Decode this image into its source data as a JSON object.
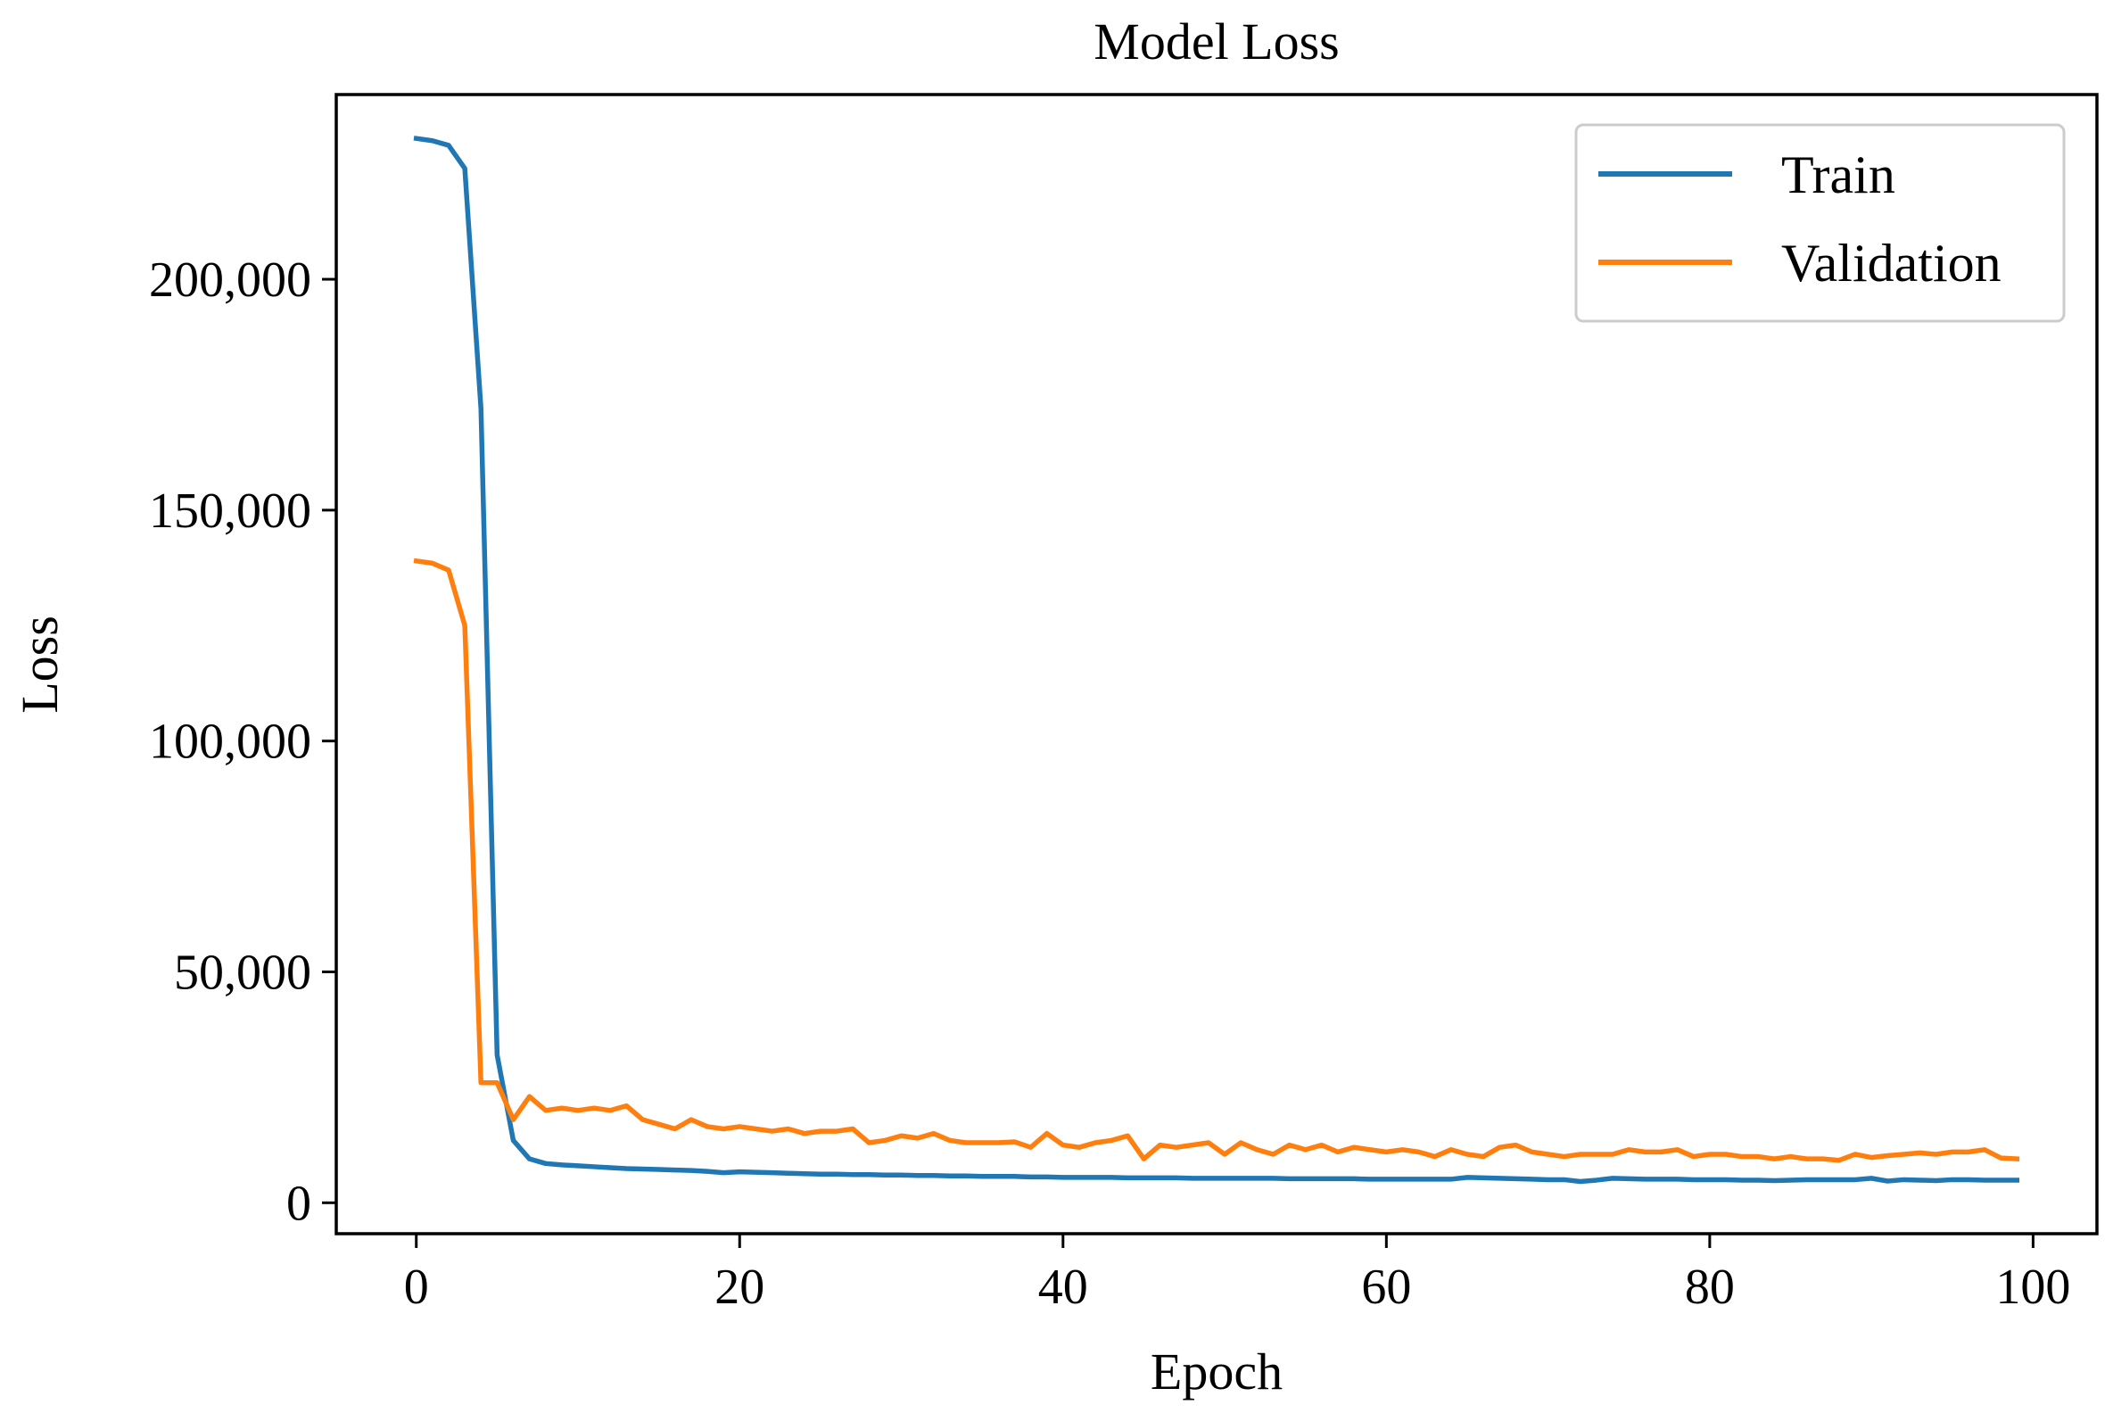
{
  "chart_data": {
    "type": "line",
    "title": "Model Loss",
    "xlabel": "Epoch",
    "ylabel": "Loss",
    "xlim": [
      -4.95,
      103.95
    ],
    "ylim": [
      -6700,
      240000
    ],
    "xticks": [
      0,
      20,
      40,
      60,
      80,
      100
    ],
    "xtick_labels": [
      "0",
      "20",
      "40",
      "60",
      "80",
      "100"
    ],
    "yticks": [
      0,
      50000,
      100000,
      150000,
      200000
    ],
    "ytick_labels": [
      "0",
      "50,000",
      "100,000",
      "150,000",
      "200,000"
    ],
    "grid": false,
    "legend_position": "top-right",
    "x": [
      0,
      1,
      2,
      3,
      4,
      5,
      6,
      7,
      8,
      9,
      10,
      11,
      12,
      13,
      14,
      15,
      16,
      17,
      18,
      19,
      20,
      21,
      22,
      23,
      24,
      25,
      26,
      27,
      28,
      29,
      30,
      31,
      32,
      33,
      34,
      35,
      36,
      37,
      38,
      39,
      40,
      41,
      42,
      43,
      44,
      45,
      46,
      47,
      48,
      49,
      50,
      51,
      52,
      53,
      54,
      55,
      56,
      57,
      58,
      59,
      60,
      61,
      62,
      63,
      64,
      65,
      66,
      67,
      68,
      69,
      70,
      71,
      72,
      73,
      74,
      75,
      76,
      77,
      78,
      79,
      80,
      81,
      82,
      83,
      84,
      85,
      86,
      87,
      88,
      89,
      90,
      91,
      92,
      93,
      94,
      95,
      96,
      97,
      98,
      99
    ],
    "series": [
      {
        "name": "Train",
        "color": "#1f77b4",
        "values": [
          230500,
          230000,
          229000,
          224000,
          172000,
          32000,
          13500,
          9500,
          8500,
          8200,
          8000,
          7800,
          7600,
          7400,
          7300,
          7200,
          7100,
          7000,
          6800,
          6500,
          6700,
          6600,
          6500,
          6400,
          6300,
          6200,
          6200,
          6100,
          6100,
          6000,
          6000,
          5900,
          5900,
          5800,
          5800,
          5700,
          5700,
          5700,
          5600,
          5600,
          5500,
          5500,
          5500,
          5500,
          5400,
          5400,
          5400,
          5400,
          5300,
          5300,
          5300,
          5300,
          5300,
          5300,
          5200,
          5200,
          5200,
          5200,
          5200,
          5100,
          5100,
          5100,
          5100,
          5100,
          5100,
          5500,
          5400,
          5300,
          5200,
          5100,
          5000,
          5000,
          4600,
          4900,
          5300,
          5200,
          5100,
          5100,
          5100,
          5000,
          5000,
          5000,
          4900,
          4900,
          4800,
          4900,
          5000,
          5000,
          5000,
          5000,
          5300,
          4700,
          5000,
          4900,
          4800,
          5000,
          5000,
          4900,
          4900,
          4900
        ]
      },
      {
        "name": "Validation",
        "color": "#ff7f0e",
        "values": [
          139000,
          138500,
          137000,
          125000,
          26000,
          26000,
          18000,
          23000,
          20000,
          20500,
          20000,
          20500,
          20000,
          21000,
          18000,
          17000,
          16000,
          18000,
          16500,
          16000,
          16500,
          16000,
          15500,
          16000,
          15000,
          15500,
          15500,
          16000,
          13000,
          13500,
          14500,
          14000,
          15000,
          13500,
          13000,
          13000,
          13000,
          13200,
          12000,
          15000,
          12500,
          12000,
          13000,
          13500,
          14500,
          9500,
          12500,
          12000,
          12500,
          13000,
          10500,
          13000,
          11500,
          10500,
          12500,
          11500,
          12500,
          11000,
          12000,
          11500,
          11000,
          11500,
          11000,
          10000,
          11500,
          10500,
          10000,
          12000,
          12500,
          11000,
          10500,
          10000,
          10500,
          10500,
          10500,
          11500,
          11000,
          11000,
          11500,
          10000,
          10500,
          10500,
          10000,
          10000,
          9500,
          10000,
          9500,
          9500,
          9200,
          10500,
          9800,
          10200,
          10500,
          10800,
          10500,
          11000,
          11000,
          11500,
          9700,
          9500
        ]
      }
    ]
  }
}
